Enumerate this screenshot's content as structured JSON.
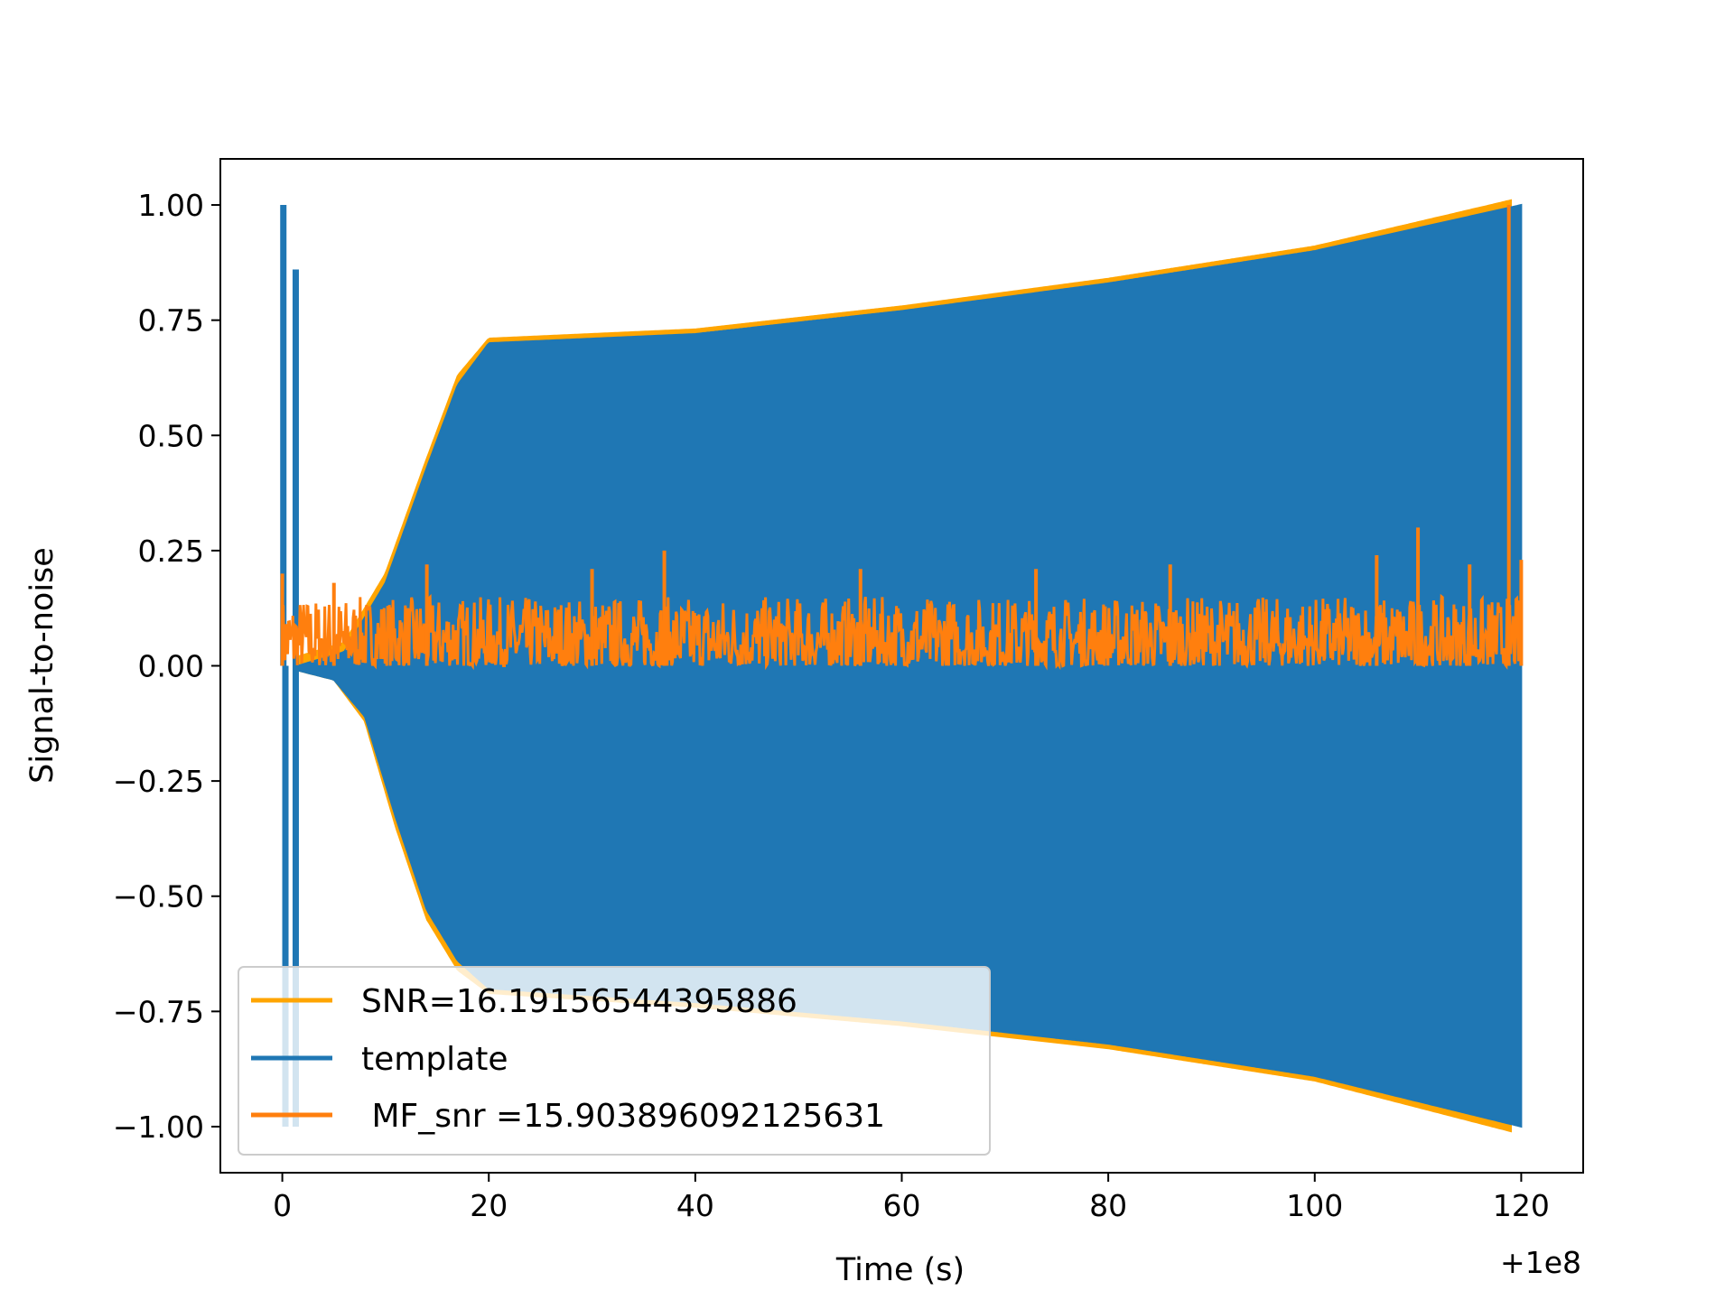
{
  "chart_data": {
    "type": "line",
    "title": "",
    "xlabel": "Time (s)",
    "ylabel": "Signal-to-noise",
    "x_offset_label": "+1e8",
    "xlim": [
      -6,
      126
    ],
    "ylim": [
      -1.1,
      1.1
    ],
    "x_ticks": [
      0,
      20,
      40,
      60,
      80,
      100,
      120
    ],
    "x_tick_labels": [
      "0",
      "20",
      "40",
      "60",
      "80",
      "100",
      "120"
    ],
    "y_ticks": [
      1.0,
      0.75,
      0.5,
      0.25,
      0.0,
      -0.25,
      -0.5,
      -0.75,
      -1.0
    ],
    "y_tick_labels": [
      "1.00",
      "0.75",
      "0.50",
      "0.25",
      "0.00",
      "−0.25",
      "−0.50",
      "−0.75",
      "−1.00"
    ],
    "grid": false,
    "legend_position": "lower-left",
    "series": [
      {
        "name": "SNR=16.19156544395886",
        "color": "#ffa500",
        "envelope_upper": [
          [
            0,
            0.0
          ],
          [
            1.5,
            0.02
          ],
          [
            6,
            0.05
          ],
          [
            10,
            0.2
          ],
          [
            14,
            0.45
          ],
          [
            17,
            0.63
          ],
          [
            20,
            0.71
          ],
          [
            40,
            0.73
          ],
          [
            60,
            0.78
          ],
          [
            80,
            0.84
          ],
          [
            100,
            0.91
          ],
          [
            119,
            1.01
          ]
        ],
        "envelope_lower": [
          [
            1.5,
            -0.01
          ],
          [
            5,
            -0.03
          ],
          [
            8,
            -0.12
          ],
          [
            11,
            -0.35
          ],
          [
            14,
            -0.55
          ],
          [
            17,
            -0.66
          ],
          [
            20,
            -0.71
          ],
          [
            40,
            -0.74
          ],
          [
            60,
            -0.78
          ],
          [
            80,
            -0.83
          ],
          [
            100,
            -0.9
          ],
          [
            119,
            -1.01
          ]
        ],
        "spikes": [
          [
            118.8,
            1.01
          ]
        ]
      },
      {
        "name": "template",
        "color": "#1f77b4",
        "envelope_upper": [
          [
            0,
            0.0
          ],
          [
            1.5,
            0.0
          ],
          [
            6,
            0.03
          ],
          [
            10,
            0.18
          ],
          [
            14,
            0.43
          ],
          [
            17,
            0.61
          ],
          [
            20,
            0.7
          ],
          [
            40,
            0.72
          ],
          [
            60,
            0.77
          ],
          [
            80,
            0.83
          ],
          [
            100,
            0.9
          ],
          [
            120,
            1.0
          ]
        ],
        "envelope_lower": [
          [
            1.5,
            -0.01
          ],
          [
            5,
            -0.03
          ],
          [
            8,
            -0.11
          ],
          [
            11,
            -0.33
          ],
          [
            14,
            -0.53
          ],
          [
            17,
            -0.64
          ],
          [
            20,
            -0.7
          ],
          [
            40,
            -0.73
          ],
          [
            60,
            -0.77
          ],
          [
            80,
            -0.82
          ],
          [
            100,
            -0.89
          ],
          [
            120,
            -1.0
          ]
        ],
        "spikes": [
          [
            0.1,
            1.0
          ],
          [
            0.3,
            -1.0
          ],
          [
            1.3,
            0.86
          ],
          [
            1.3,
            -1.0
          ]
        ]
      },
      {
        "name": " MF_snr =15.903896092125631",
        "color": "#ff7f0e",
        "baseline": 0.0,
        "typical_max": 0.15,
        "peaks": [
          [
            0,
            0.2
          ],
          [
            5,
            0.18
          ],
          [
            14,
            0.22
          ],
          [
            30,
            0.21
          ],
          [
            37,
            0.25
          ],
          [
            56,
            0.21
          ],
          [
            73,
            0.21
          ],
          [
            86,
            0.22
          ],
          [
            106,
            0.24
          ],
          [
            110,
            0.3
          ],
          [
            115,
            0.22
          ],
          [
            118.8,
            1.0
          ],
          [
            120,
            0.23
          ]
        ]
      }
    ]
  }
}
